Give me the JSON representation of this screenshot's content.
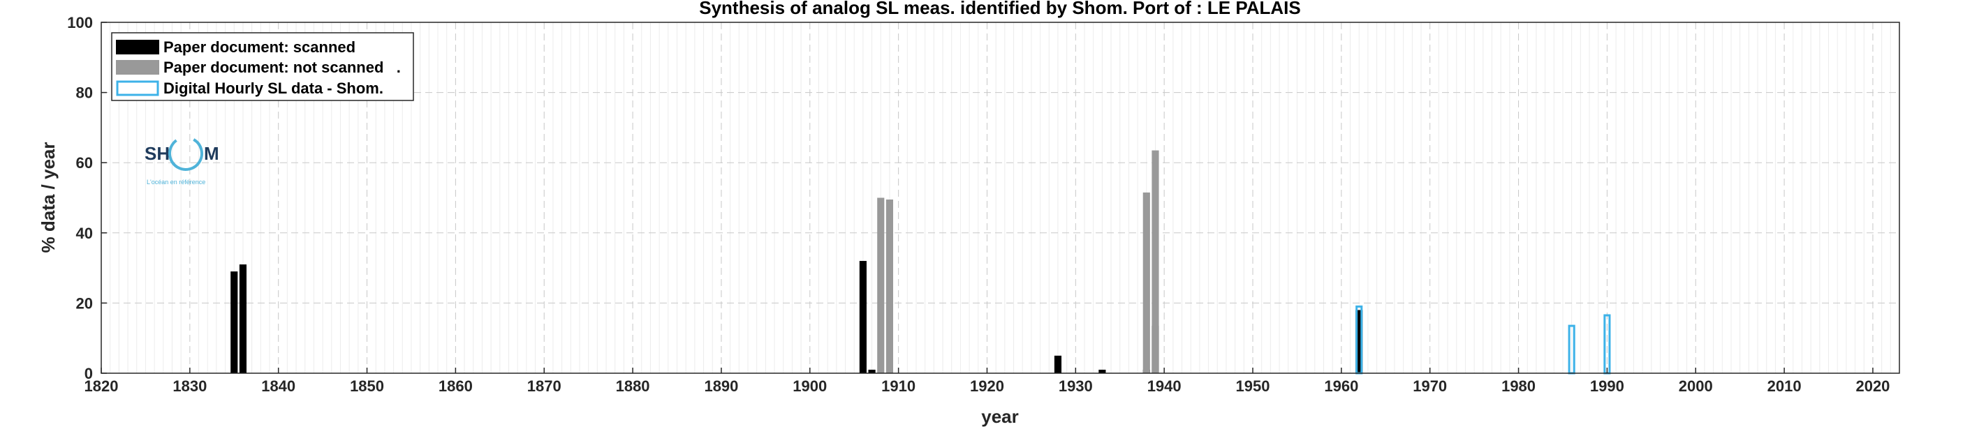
{
  "chart_data": {
    "type": "bar",
    "title": "Synthesis of analog SL meas. identified by Shom. Port of : LE PALAIS",
    "xlabel": "year",
    "ylabel": "% data / year",
    "xlim": [
      1820,
      2023
    ],
    "ylim": [
      0,
      100
    ],
    "x_ticks": [
      1820,
      1830,
      1840,
      1850,
      1860,
      1870,
      1880,
      1890,
      1900,
      1910,
      1920,
      1930,
      1940,
      1950,
      1960,
      1970,
      1980,
      1990,
      2000,
      2010,
      2020
    ],
    "y_ticks": [
      0,
      20,
      40,
      60,
      80,
      100
    ],
    "grid": true,
    "legend_position": "top-left",
    "colors": {
      "scanned": "#000000",
      "not_scanned": "#999999",
      "digital": "#3db2e8"
    },
    "series": [
      {
        "name": "Paper document: scanned",
        "style": "filled",
        "color": "#000000",
        "points": [
          {
            "x": 1835,
            "y": 29
          },
          {
            "x": 1836,
            "y": 31
          },
          {
            "x": 1906,
            "y": 32
          },
          {
            "x": 1907,
            "y": 1
          },
          {
            "x": 1928,
            "y": 5
          },
          {
            "x": 1933,
            "y": 1
          },
          {
            "x": 1938,
            "y": 1
          },
          {
            "x": 1939,
            "y": 13.5
          },
          {
            "x": 1962,
            "y": 18
          }
        ]
      },
      {
        "name": "Paper document: not scanned   .",
        "style": "filled",
        "color": "#999999",
        "points": [
          {
            "x": 1908,
            "y": 50
          },
          {
            "x": 1909,
            "y": 49.5
          },
          {
            "x": 1938,
            "y": 51.5
          },
          {
            "x": 1939,
            "y": 63.5
          }
        ]
      },
      {
        "name": "Digital Hourly SL data - Shom.",
        "style": "outline",
        "color": "#3db2e8",
        "points": [
          {
            "x": 1962,
            "y": 19
          },
          {
            "x": 1986,
            "y": 13.5
          },
          {
            "x": 1990,
            "y": 16.5
          }
        ]
      }
    ]
  },
  "logo": {
    "text_left": "SH",
    "text_right": "M",
    "tagline": "L'océan en référence"
  }
}
